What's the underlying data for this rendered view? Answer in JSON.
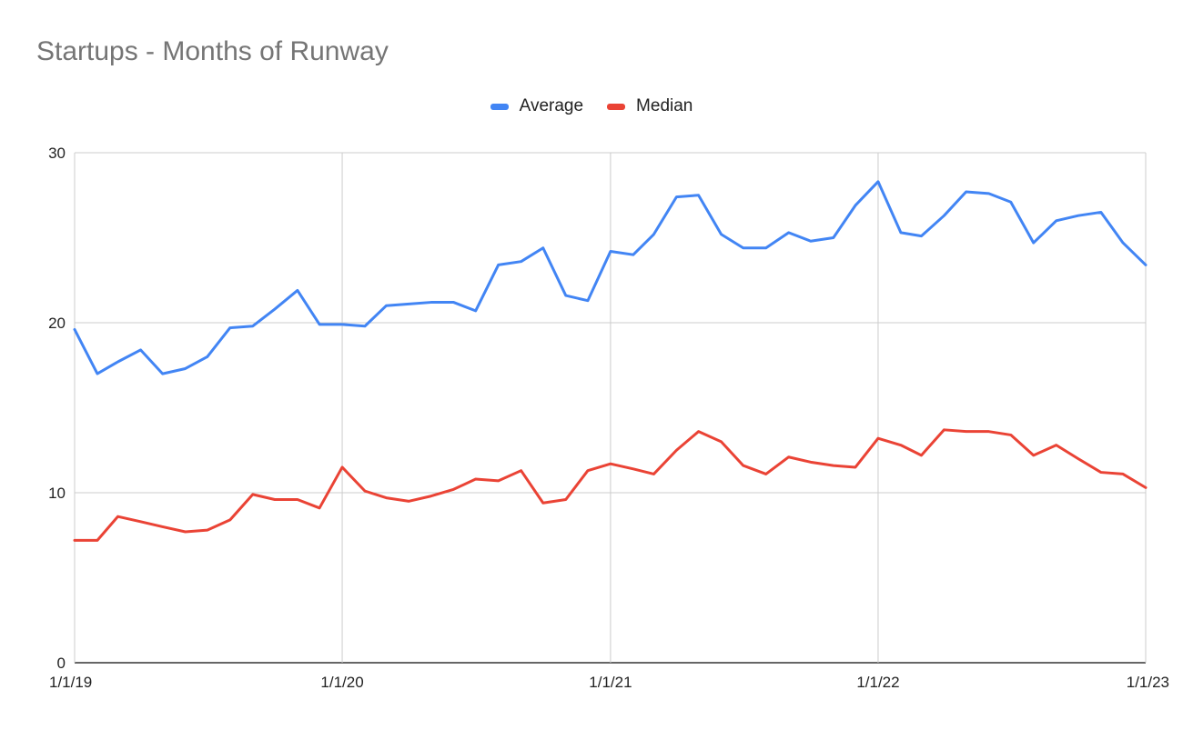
{
  "chart_data": {
    "type": "line",
    "title": "Startups - Months of Runway",
    "xlabel": "",
    "ylabel": "",
    "ylim": [
      0,
      30
    ],
    "yticks": [
      0,
      10,
      20,
      30
    ],
    "xlim": [
      "2019-01-01",
      "2023-01-01"
    ],
    "xticks": [
      {
        "date": "2019-01-01",
        "label": "1/1/19"
      },
      {
        "date": "2020-01-01",
        "label": "1/1/20"
      },
      {
        "date": "2021-01-01",
        "label": "1/1/21"
      },
      {
        "date": "2022-01-01",
        "label": "1/1/22"
      },
      {
        "date": "2023-01-01",
        "label": "1/1/23"
      }
    ],
    "grid": true,
    "legend_position": "top-center",
    "x": [
      "2019-01",
      "2019-02",
      "2019-03",
      "2019-04",
      "2019-05",
      "2019-06",
      "2019-07",
      "2019-08",
      "2019-09",
      "2019-10",
      "2019-11",
      "2019-12",
      "2020-01",
      "2020-02",
      "2020-03",
      "2020-04",
      "2020-05",
      "2020-06",
      "2020-07",
      "2020-08",
      "2020-09",
      "2020-10",
      "2020-11",
      "2020-12",
      "2021-01",
      "2021-02",
      "2021-03",
      "2021-04",
      "2021-05",
      "2021-06",
      "2021-07",
      "2021-08",
      "2021-09",
      "2021-10",
      "2021-11",
      "2021-12",
      "2022-01",
      "2022-02",
      "2022-03",
      "2022-04",
      "2022-05",
      "2022-06",
      "2022-07",
      "2022-08",
      "2022-09",
      "2022-10",
      "2022-11",
      "2022-12",
      "2023-01"
    ],
    "series": [
      {
        "name": "Average",
        "color": "#4285F4",
        "values": [
          19.6,
          17.0,
          17.7,
          18.4,
          17.0,
          17.3,
          18.0,
          19.7,
          19.8,
          20.8,
          21.9,
          19.9,
          19.9,
          19.8,
          21.0,
          21.1,
          21.2,
          21.2,
          20.7,
          23.4,
          23.6,
          24.4,
          21.6,
          21.3,
          24.2,
          24.0,
          25.2,
          27.4,
          27.5,
          25.2,
          24.4,
          24.4,
          25.3,
          24.8,
          25.0,
          26.9,
          28.3,
          25.3,
          25.1,
          26.3,
          27.7,
          27.6,
          27.1,
          24.7,
          26.0,
          26.3,
          26.5,
          24.7,
          23.4
        ]
      },
      {
        "name": "Median",
        "color": "#EA4335",
        "values": [
          7.2,
          7.2,
          8.6,
          8.3,
          8.0,
          7.7,
          7.8,
          8.4,
          9.9,
          9.6,
          9.6,
          9.1,
          11.5,
          10.1,
          9.7,
          9.5,
          9.8,
          10.2,
          10.8,
          10.7,
          11.3,
          9.4,
          9.6,
          11.3,
          11.7,
          11.4,
          11.1,
          12.5,
          13.6,
          13.0,
          11.6,
          11.1,
          12.1,
          11.8,
          11.6,
          11.5,
          13.2,
          12.8,
          12.2,
          13.7,
          13.6,
          13.6,
          13.4,
          12.2,
          12.8,
          12.0,
          11.2,
          11.1,
          10.3
        ]
      }
    ]
  }
}
